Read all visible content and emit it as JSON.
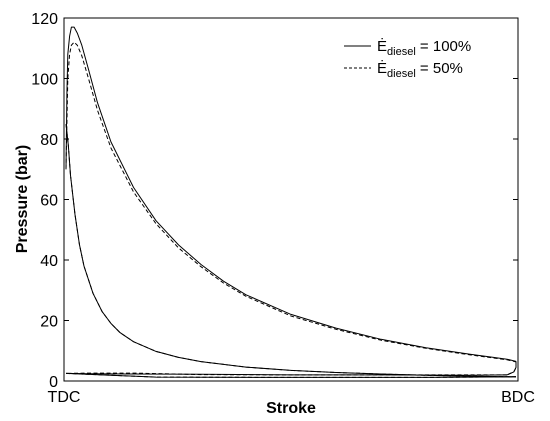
{
  "chart_data": {
    "type": "line",
    "title": "",
    "xlabel": "Stroke",
    "ylabel": "Pressure (bar)",
    "ylim": [
      0,
      120
    ],
    "yticks": [
      0,
      20,
      40,
      60,
      80,
      100,
      120
    ],
    "x_tick_labels": [
      "TDC",
      "BDC"
    ],
    "grid": false,
    "legend_position": "top-right",
    "series": [
      {
        "name": "Ė_diesel = 100%",
        "legend_parts": {
          "symbol": "Ė",
          "subscript": "diesel",
          "value": " = 100%"
        },
        "line_style": "solid",
        "curves": {
          "expansion": [
            [
              0.0,
              70
            ],
            [
              0.002,
              95
            ],
            [
              0.004,
              108
            ],
            [
              0.008,
              114
            ],
            [
              0.012,
              117
            ],
            [
              0.018,
              117
            ],
            [
              0.025,
              115
            ],
            [
              0.035,
              111
            ],
            [
              0.05,
              103
            ],
            [
              0.07,
              92
            ],
            [
              0.1,
              79
            ],
            [
              0.15,
              64
            ],
            [
              0.2,
              53
            ],
            [
              0.25,
              45
            ],
            [
              0.3,
              38.5
            ],
            [
              0.35,
              33
            ],
            [
              0.4,
              28.5
            ],
            [
              0.5,
              22
            ],
            [
              0.6,
              17.5
            ],
            [
              0.7,
              13.8
            ],
            [
              0.8,
              11
            ],
            [
              0.9,
              8.8
            ],
            [
              0.95,
              7.8
            ],
            [
              0.98,
              7.2
            ],
            [
              1.0,
              6.5
            ]
          ],
          "blowdown": [
            [
              1.0,
              6.5
            ],
            [
              1.0,
              4.5
            ],
            [
              0.995,
              3
            ],
            [
              0.98,
              2
            ]
          ],
          "exhaust": [
            [
              0.98,
              2
            ],
            [
              0.9,
              1.9
            ],
            [
              0.7,
              2
            ],
            [
              0.5,
              2
            ],
            [
              0.3,
              2.2
            ],
            [
              0.15,
              2.3
            ],
            [
              0.05,
              2.4
            ],
            [
              0.0,
              2.5
            ]
          ],
          "intake": [
            [
              0.0,
              2.5
            ],
            [
              0.2,
              1.3
            ],
            [
              0.5,
              1.2
            ],
            [
              0.8,
              1.2
            ],
            [
              1.0,
              1.4
            ]
          ],
          "compression": [
            [
              1.0,
              1.4
            ],
            [
              0.9,
              1.6
            ],
            [
              0.8,
              1.9
            ],
            [
              0.7,
              2.3
            ],
            [
              0.6,
              2.8
            ],
            [
              0.5,
              3.5
            ],
            [
              0.4,
              4.6
            ],
            [
              0.3,
              6.4
            ],
            [
              0.25,
              7.8
            ],
            [
              0.2,
              9.8
            ],
            [
              0.15,
              13
            ],
            [
              0.12,
              16
            ],
            [
              0.1,
              19
            ],
            [
              0.08,
              23
            ],
            [
              0.06,
              29
            ],
            [
              0.04,
              38
            ],
            [
              0.03,
              45
            ],
            [
              0.02,
              55
            ],
            [
              0.01,
              68
            ],
            [
              0.005,
              78
            ],
            [
              0.0,
              85
            ]
          ]
        }
      },
      {
        "name": "Ė_diesel = 50%",
        "legend_parts": {
          "symbol": "Ė",
          "subscript": "diesel",
          "value": " = 50%"
        },
        "line_style": "dashed",
        "curves": {
          "expansion": [
            [
              0.0,
              70
            ],
            [
              0.004,
              100
            ],
            [
              0.008,
              108
            ],
            [
              0.012,
              111
            ],
            [
              0.018,
              112
            ],
            [
              0.025,
              111
            ],
            [
              0.035,
              107.5
            ],
            [
              0.05,
              100
            ],
            [
              0.07,
              89.5
            ],
            [
              0.1,
              77
            ],
            [
              0.15,
              62.5
            ],
            [
              0.2,
              52
            ],
            [
              0.25,
              44
            ],
            [
              0.3,
              37.8
            ],
            [
              0.35,
              32.4
            ],
            [
              0.4,
              28
            ],
            [
              0.5,
              21.5
            ],
            [
              0.6,
              17.1
            ],
            [
              0.7,
              13.5
            ],
            [
              0.8,
              10.8
            ],
            [
              0.9,
              8.6
            ],
            [
              0.95,
              7.6
            ],
            [
              0.98,
              7
            ],
            [
              1.0,
              6.3
            ]
          ],
          "blowdown": [
            [
              1.0,
              6.3
            ],
            [
              1.0,
              4.4
            ],
            [
              0.995,
              3
            ],
            [
              0.98,
              2
            ]
          ],
          "exhaust": [
            [
              0.98,
              2
            ],
            [
              0.7,
              2
            ],
            [
              0.5,
              2
            ],
            [
              0.3,
              2.1
            ],
            [
              0.15,
              2.6
            ],
            [
              0.05,
              2.6
            ],
            [
              0.0,
              2.5
            ]
          ],
          "intake": [
            [
              0.0,
              2.5
            ],
            [
              0.2,
              1.3
            ],
            [
              0.5,
              1.2
            ],
            [
              0.8,
              1.2
            ],
            [
              1.0,
              1.4
            ]
          ],
          "compression": [
            [
              1.0,
              1.4
            ],
            [
              0.9,
              1.6
            ],
            [
              0.8,
              1.9
            ],
            [
              0.7,
              2.3
            ],
            [
              0.6,
              2.8
            ],
            [
              0.5,
              3.5
            ],
            [
              0.4,
              4.6
            ],
            [
              0.3,
              6.4
            ],
            [
              0.25,
              7.8
            ],
            [
              0.2,
              9.8
            ],
            [
              0.15,
              13
            ],
            [
              0.12,
              16
            ],
            [
              0.1,
              19
            ],
            [
              0.08,
              23
            ],
            [
              0.06,
              29
            ],
            [
              0.04,
              38
            ],
            [
              0.03,
              45
            ],
            [
              0.02,
              55
            ],
            [
              0.01,
              68
            ],
            [
              0.005,
              78
            ],
            [
              0.0,
              85
            ]
          ]
        }
      }
    ]
  }
}
